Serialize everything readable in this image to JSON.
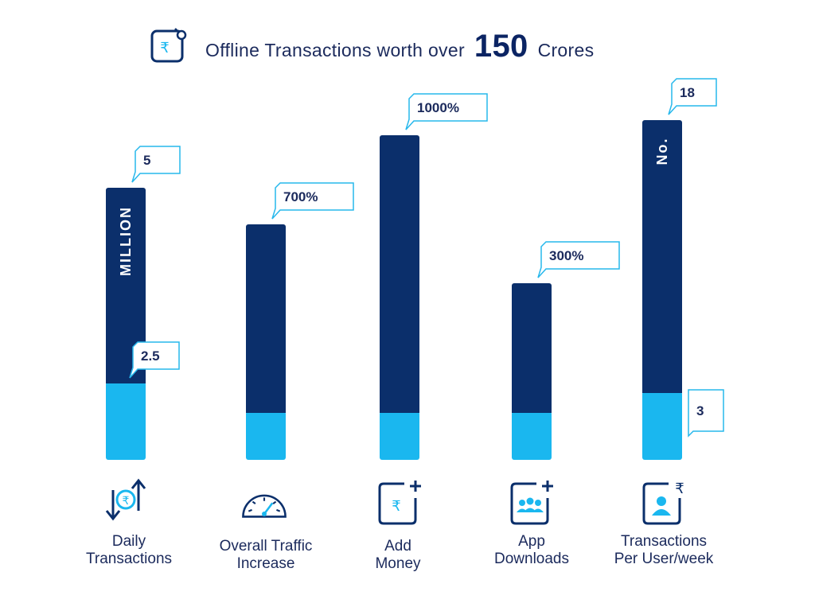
{
  "header": {
    "prefix": "Offline Transactions worth over",
    "big_number": "150",
    "suffix": "Crores",
    "icon": "rupee-wallet-icon"
  },
  "colors": {
    "dark": "#0b2f6b",
    "light": "#1ab7ef",
    "text": "#1b2a5c",
    "callout_border": "#27b8ec"
  },
  "chart_data": {
    "type": "bar",
    "stacked": true,
    "categories": [
      "Daily Transactions",
      "Overall Traffic Increase",
      "Add Money",
      "App Downloads",
      "Transactions Per User/week"
    ],
    "bars": [
      {
        "label_lines": [
          "Daily",
          "Transactions"
        ],
        "icon": "exchange-rupee-icon",
        "total": 5,
        "base": 2.5,
        "top_label": "5",
        "base_label": "2.5",
        "unit": "MILLION"
      },
      {
        "label_lines": [
          "Overall Traffic",
          "Increase"
        ],
        "icon": "speedometer-icon",
        "total": 700,
        "base": 100,
        "top_label": "700%",
        "base_label": "",
        "unit": ""
      },
      {
        "label_lines": [
          "Add",
          "Money"
        ],
        "icon": "add-money-icon",
        "total": 1000,
        "base": 100,
        "top_label": "1000%",
        "base_label": "",
        "unit": ""
      },
      {
        "label_lines": [
          "App",
          "Downloads"
        ],
        "icon": "app-downloads-icon",
        "total": 300,
        "base": 100,
        "top_label": "300%",
        "base_label": "",
        "unit": ""
      },
      {
        "label_lines": [
          "Transactions",
          "Per User/week"
        ],
        "icon": "user-transaction-icon",
        "total": 18,
        "base": 3,
        "top_label": "18",
        "base_label": "3",
        "unit": "No."
      }
    ]
  }
}
